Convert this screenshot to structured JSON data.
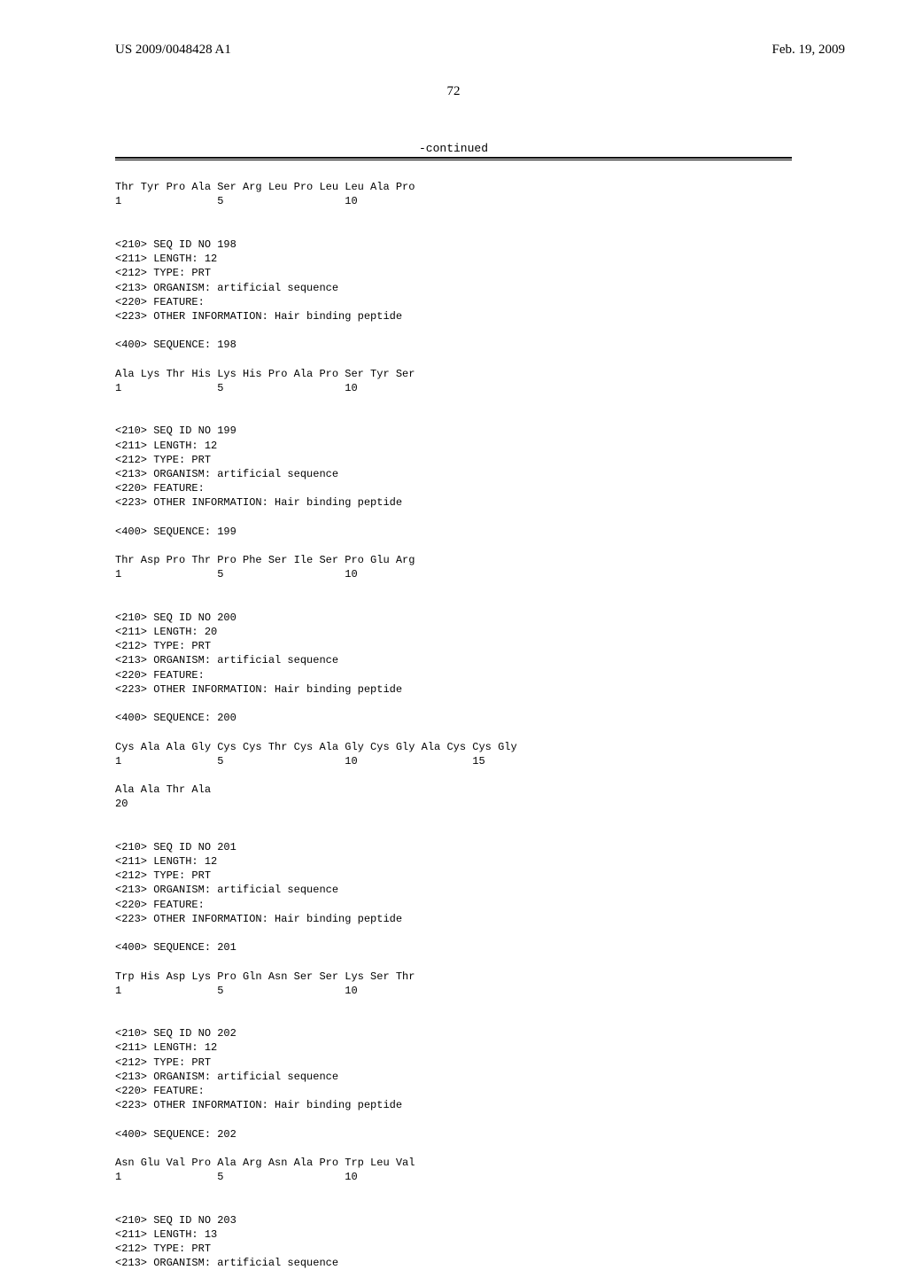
{
  "header": {
    "patent_number": "US 2009/0048428 A1",
    "date": "Feb. 19, 2009",
    "page_number": "72"
  },
  "continued_label": "-continued",
  "sequences": {
    "seq_197": {
      "sequence_line": "Thr Tyr Pro Ala Ser Arg Leu Pro Leu Leu Ala Pro",
      "position_line": "1               5                   10"
    },
    "seq_198": {
      "id": "<210> SEQ ID NO 198",
      "length": "<211> LENGTH: 12",
      "type": "<212> TYPE: PRT",
      "organism": "<213> ORGANISM: artificial sequence",
      "feature": "<220> FEATURE:",
      "info": "<223> OTHER INFORMATION: Hair binding peptide",
      "seq_header": "<400> SEQUENCE: 198",
      "sequence_line": "Ala Lys Thr His Lys His Pro Ala Pro Ser Tyr Ser",
      "position_line": "1               5                   10"
    },
    "seq_199": {
      "id": "<210> SEQ ID NO 199",
      "length": "<211> LENGTH: 12",
      "type": "<212> TYPE: PRT",
      "organism": "<213> ORGANISM: artificial sequence",
      "feature": "<220> FEATURE:",
      "info": "<223> OTHER INFORMATION: Hair binding peptide",
      "seq_header": "<400> SEQUENCE: 199",
      "sequence_line": "Thr Asp Pro Thr Pro Phe Ser Ile Ser Pro Glu Arg",
      "position_line": "1               5                   10"
    },
    "seq_200": {
      "id": "<210> SEQ ID NO 200",
      "length": "<211> LENGTH: 20",
      "type": "<212> TYPE: PRT",
      "organism": "<213> ORGANISM: artificial sequence",
      "feature": "<220> FEATURE:",
      "info": "<223> OTHER INFORMATION: Hair binding peptide",
      "seq_header": "<400> SEQUENCE: 200",
      "sequence_line1": "Cys Ala Ala Gly Cys Cys Thr Cys Ala Gly Cys Gly Ala Cys Cys Gly",
      "position_line1": "1               5                   10                  15",
      "sequence_line2": "Ala Ala Thr Ala",
      "position_line2": "20"
    },
    "seq_201": {
      "id": "<210> SEQ ID NO 201",
      "length": "<211> LENGTH: 12",
      "type": "<212> TYPE: PRT",
      "organism": "<213> ORGANISM: artificial sequence",
      "feature": "<220> FEATURE:",
      "info": "<223> OTHER INFORMATION: Hair binding peptide",
      "seq_header": "<400> SEQUENCE: 201",
      "sequence_line": "Trp His Asp Lys Pro Gln Asn Ser Ser Lys Ser Thr",
      "position_line": "1               5                   10"
    },
    "seq_202": {
      "id": "<210> SEQ ID NO 202",
      "length": "<211> LENGTH: 12",
      "type": "<212> TYPE: PRT",
      "organism": "<213> ORGANISM: artificial sequence",
      "feature": "<220> FEATURE:",
      "info": "<223> OTHER INFORMATION: Hair binding peptide",
      "seq_header": "<400> SEQUENCE: 202",
      "sequence_line": "Asn Glu Val Pro Ala Arg Asn Ala Pro Trp Leu Val",
      "position_line": "1               5                   10"
    },
    "seq_203": {
      "id": "<210> SEQ ID NO 203",
      "length": "<211> LENGTH: 13",
      "type": "<212> TYPE: PRT",
      "organism": "<213> ORGANISM: artificial sequence"
    }
  }
}
